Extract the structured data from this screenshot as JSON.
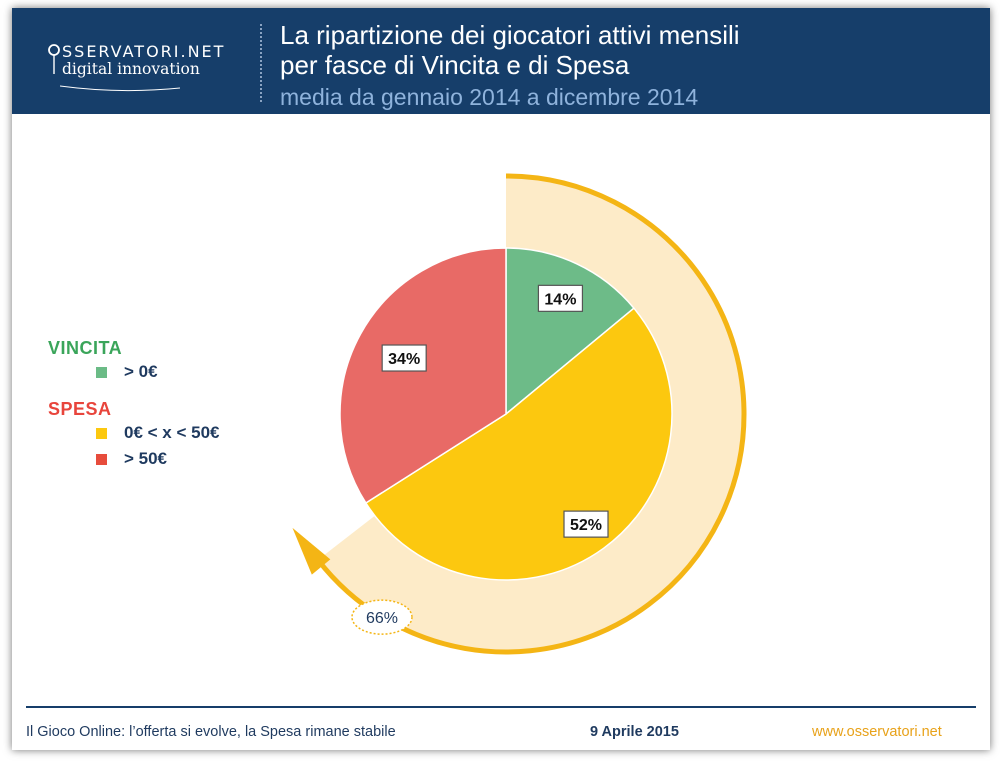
{
  "header": {
    "logo_top": "SSERVATORI.NET",
    "logo_bottom": "digital innovation",
    "title_line1": "La ripartizione dei giocatori attivi mensili",
    "title_line2": "per fasce di Vincita e di Spesa",
    "subtitle": "media da gennaio 2014 a dicembre 2014"
  },
  "legend": {
    "vincita_title": "VINCITA",
    "spesa_title": "SPESA",
    "items": [
      {
        "label": "> 0€",
        "color": "#6bbb86"
      },
      {
        "label": "0€ < x < 50€",
        "color": "#fcc80f"
      },
      {
        "label": "> 50€",
        "color": "#e74c3c"
      }
    ]
  },
  "chart_data": {
    "type": "pie",
    "title": "La ripartizione dei giocatori attivi mensili per fasce di Vincita e di Spesa",
    "slices": [
      {
        "name": "VINCITA > 0€",
        "value": 14,
        "label": "14%",
        "color": "#6dbb88"
      },
      {
        "name": "SPESA 0€ < x < 50€",
        "value": 52,
        "label": "52%",
        "color": "#fcc80f"
      },
      {
        "name": "SPESA > 50€",
        "value": 34,
        "label": "34%",
        "color": "#e86a66"
      }
    ],
    "annotation": {
      "label": "66%",
      "value": 66,
      "description": "arc covering VINCITA + SPESA 0€ < x < 50€"
    },
    "colors": {
      "arc_fill": "#fdebc8",
      "arc_stroke": "#f4b515"
    }
  },
  "footer": {
    "left": "Il Gioco Online: l’offerta si evolve, la Spesa rimane stabile",
    "date": "9 Aprile 2015",
    "url": "www.osservatori.net"
  }
}
